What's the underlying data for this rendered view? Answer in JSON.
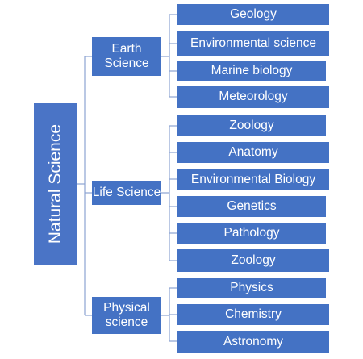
{
  "diagram": {
    "root": {
      "label": "Natural Science"
    },
    "categories": [
      {
        "label": "Earth\nScience",
        "children": [
          "Geology",
          "Environmental science",
          "Marine biology",
          "Meteorology"
        ]
      },
      {
        "label": "Life Science",
        "children": [
          "Zoology",
          "Anatomy",
          "Environmental Biology",
          "Genetics",
          "Pathology",
          "Zoology"
        ]
      },
      {
        "label": "Physical\nscience",
        "children": [
          "Physics",
          "Chemistry",
          "Astronomy"
        ]
      }
    ],
    "colors": {
      "box_fill": "#4472c4",
      "box_text": "#ffffff",
      "connector": "#8ca4d2"
    }
  }
}
